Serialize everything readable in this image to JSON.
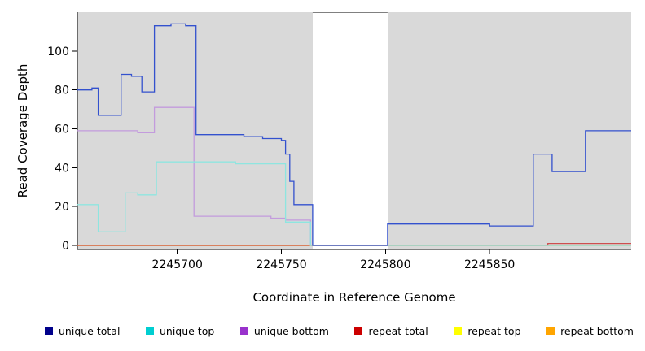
{
  "chart_data": {
    "type": "line",
    "step": true,
    "title": "",
    "xlabel": "Coordinate in Reference Genome",
    "ylabel": "Read Coverage Depth",
    "xlim": [
      2245652,
      2245918
    ],
    "ylim": [
      0,
      120
    ],
    "xticks": [
      2245700,
      2245750,
      2245800,
      2245850
    ],
    "yticks": [
      0,
      20,
      40,
      60,
      80,
      100
    ],
    "grid": false,
    "panel_color": "#d9d9d9",
    "gap_band": {
      "from": 2245765,
      "to": 2245801,
      "color": "#ffffff",
      "top_border": "#808080"
    },
    "series": [
      {
        "name": "repeat top",
        "color": "#FFFF00",
        "points": [
          [
            2245652,
            0
          ],
          [
            2245918,
            0
          ]
        ]
      },
      {
        "name": "repeat bottom",
        "color": "#FFA500",
        "points": [
          [
            2245652,
            0
          ],
          [
            2245918,
            0
          ]
        ]
      },
      {
        "name": "repeat total",
        "color": "#CD4F4F",
        "points": [
          [
            2245652,
            0
          ],
          [
            2245878,
            1
          ],
          [
            2245918,
            1
          ]
        ]
      },
      {
        "name": "unique bottom",
        "color": "#C39BDD",
        "points": [
          [
            2245652,
            59
          ],
          [
            2245681,
            58
          ],
          [
            2245689,
            71
          ],
          [
            2245708,
            15
          ],
          [
            2245745,
            14
          ],
          [
            2245752,
            13
          ],
          [
            2245764,
            0
          ],
          [
            2245918,
            0
          ]
        ]
      },
      {
        "name": "unique top",
        "color": "#8EE5E0",
        "points": [
          [
            2245652,
            21
          ],
          [
            2245662,
            7
          ],
          [
            2245675,
            27
          ],
          [
            2245681,
            26
          ],
          [
            2245690,
            43
          ],
          [
            2245728,
            42
          ],
          [
            2245752,
            12
          ],
          [
            2245764,
            0
          ],
          [
            2245918,
            0
          ]
        ]
      },
      {
        "name": "unique total",
        "color": "#3351CE",
        "points": [
          [
            2245652,
            80
          ],
          [
            2245659,
            81
          ],
          [
            2245662,
            67
          ],
          [
            2245673,
            88
          ],
          [
            2245678,
            87
          ],
          [
            2245683,
            79
          ],
          [
            2245689,
            113
          ],
          [
            2245697,
            114
          ],
          [
            2245704,
            113
          ],
          [
            2245709,
            57
          ],
          [
            2245732,
            56
          ],
          [
            2245741,
            55
          ],
          [
            2245750,
            54
          ],
          [
            2245752,
            47
          ],
          [
            2245754,
            33
          ],
          [
            2245756,
            21
          ],
          [
            2245765,
            0
          ],
          [
            2245801,
            11
          ],
          [
            2245850,
            10
          ],
          [
            2245871,
            47
          ],
          [
            2245880,
            38
          ],
          [
            2245896,
            59
          ],
          [
            2245918,
            59
          ]
        ]
      }
    ],
    "legend": [
      {
        "label": "unique total",
        "color": "#00008B"
      },
      {
        "label": "unique top",
        "color": "#00CED1"
      },
      {
        "label": "unique bottom",
        "color": "#9932CC"
      },
      {
        "label": "repeat total",
        "color": "#CC0000"
      },
      {
        "label": "repeat top",
        "color": "#FFFF00"
      },
      {
        "label": "repeat bottom",
        "color": "#FFA500"
      }
    ]
  }
}
